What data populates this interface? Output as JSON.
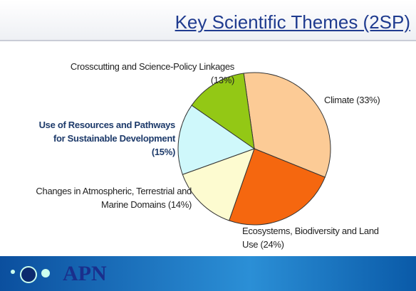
{
  "title": "Key Scientific Themes (2SP)",
  "logo": "APN",
  "chart_data": {
    "type": "pie",
    "categories": [
      "Climate",
      "Ecosystems, Biodiversity and Land Use",
      "Changes in Atmospheric, Terrestrial and Marine Domains",
      "Use of Resources and Pathways for Sustainable Development",
      "Crosscutting and Science-Policy Linkages"
    ],
    "values": [
      33,
      24,
      14,
      15,
      13
    ],
    "value_labels": [
      "(33%)",
      "(24%)",
      "(14%)",
      "(15%)",
      "(13%)"
    ],
    "colors": [
      "#fccb96",
      "#f5670f",
      "#fdfbd0",
      "#cff8fb",
      "#93c815"
    ]
  }
}
